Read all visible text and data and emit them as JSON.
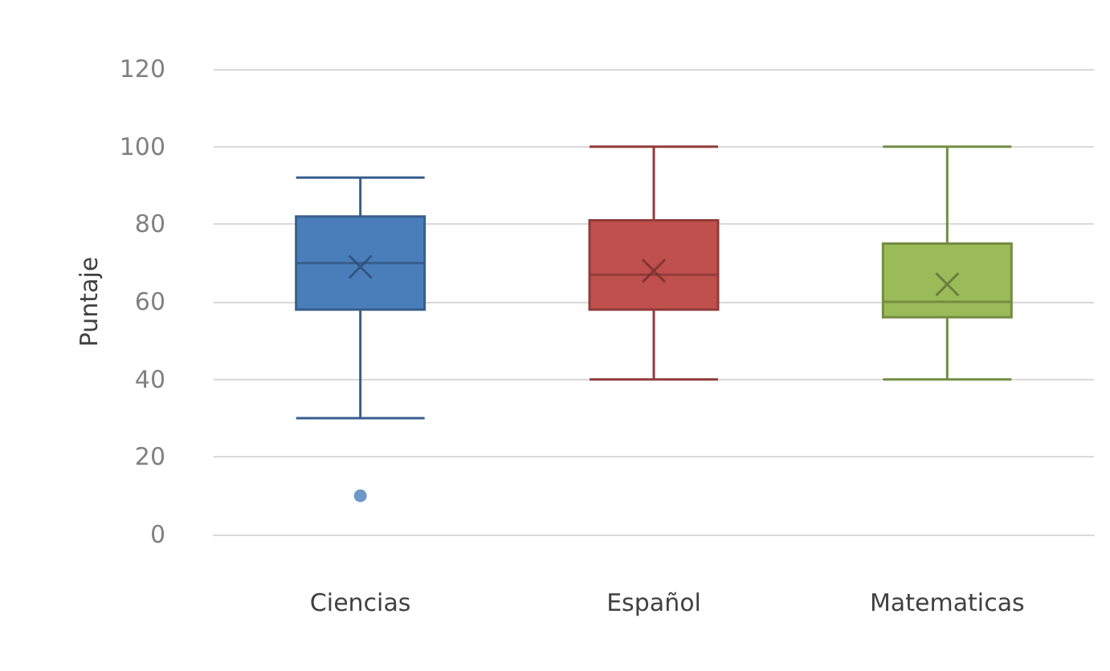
{
  "chart_data": {
    "type": "box",
    "ylabel": "Puntaje",
    "categories": [
      "Ciencias",
      "Español",
      "Matematicas"
    ],
    "colors": [
      "#4a7ebb",
      "#c0504d",
      "#9bbb59"
    ],
    "boxes": [
      {
        "low": 30,
        "q1": 58,
        "median": 70,
        "q3": 82,
        "high": 92,
        "mean": 69,
        "outliers": [
          10
        ]
      },
      {
        "low": 40,
        "q1": 58,
        "median": 67,
        "q3": 81,
        "high": 100,
        "mean": 68
      },
      {
        "low": 40,
        "q1": 56,
        "median": 60,
        "q3": 75,
        "high": 100,
        "mean": 64.5
      }
    ],
    "ylim": [
      0,
      120
    ],
    "yticks": [
      0,
      20,
      40,
      60,
      80,
      100,
      120
    ],
    "grid": "y"
  }
}
